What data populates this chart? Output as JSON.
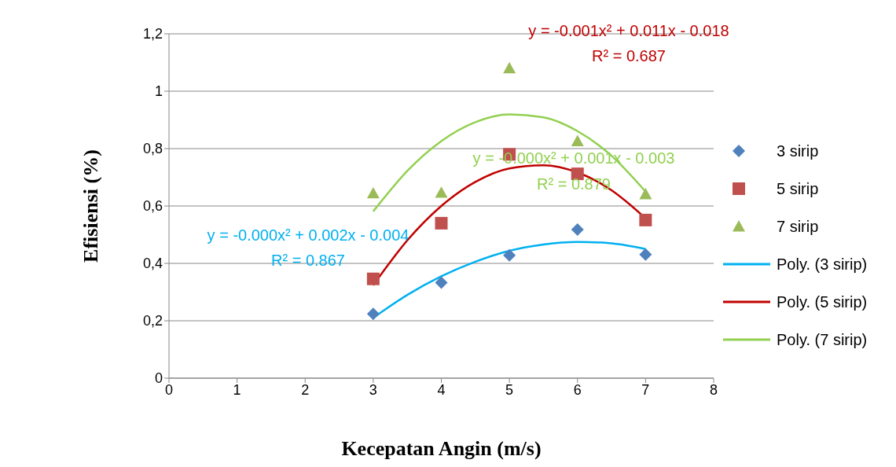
{
  "chart_data": {
    "type": "scatter",
    "xlabel": "Kecepatan Angin (m/s)",
    "ylabel": "Efisiensi (%)",
    "xlim": [
      0,
      8
    ],
    "xticks": [
      0,
      1,
      2,
      3,
      4,
      5,
      6,
      7,
      8
    ],
    "ylim": [
      0,
      1.2
    ],
    "yticks": [
      0,
      {
        "value": 0.2,
        "label": "0,2"
      },
      {
        "value": 0.4,
        "label": "0,4"
      },
      {
        "value": 0.6,
        "label": "0,6"
      },
      {
        "value": 0.8,
        "label": "0,8"
      },
      1,
      {
        "value": 1.2,
        "label": "1,2"
      }
    ],
    "grid": "y",
    "legend": "right",
    "series": [
      {
        "name": "3 sirip",
        "marker": "diamond",
        "color": "#4f81bd",
        "x": [
          3,
          4,
          5,
          6,
          7
        ],
        "values": [
          0.224,
          0.333,
          0.428,
          0.518,
          0.431
        ]
      },
      {
        "name": "5 sirip",
        "marker": "square",
        "color": "#c0504d",
        "x": [
          3,
          4,
          5,
          6,
          7
        ],
        "values": [
          0.346,
          0.54,
          0.78,
          0.712,
          0.551
        ]
      },
      {
        "name": "7 sirip",
        "marker": "triangle",
        "color": "#9bbb59",
        "x": [
          3,
          4,
          5,
          6,
          7
        ],
        "values": [
          0.644,
          0.646,
          1.08,
          0.826,
          0.641
        ]
      },
      {
        "name": "Poly. (3 sirip)",
        "type": "line",
        "color": "#00b0f0",
        "x": [
          3,
          3.5,
          4,
          4.5,
          5,
          5.5,
          6,
          6.5,
          7
        ],
        "values": [
          0.21,
          0.29,
          0.355,
          0.406,
          0.444,
          0.466,
          0.475,
          0.47,
          0.45
        ]
      },
      {
        "name": "Poly. (5 sirip)",
        "type": "line",
        "color": "#c00000",
        "x": [
          3,
          3.5,
          4,
          4.5,
          5,
          5.5,
          6,
          6.5,
          7
        ],
        "values": [
          0.324,
          0.48,
          0.6,
          0.684,
          0.731,
          0.742,
          0.717,
          0.655,
          0.557
        ]
      },
      {
        "name": "Poly. (7 sirip)",
        "type": "line",
        "color": "#92d050",
        "x": [
          3,
          3.5,
          4,
          4.5,
          5,
          5.5,
          6,
          6.5,
          7
        ],
        "values": [
          0.581,
          0.722,
          0.826,
          0.892,
          0.919,
          0.909,
          0.861,
          0.775,
          0.65
        ]
      }
    ],
    "annotations": [
      "y = -0.000x² + 0.002x - 0.004",
      "R² = 0.867",
      "y = -0.001x² + 0.011x - 0.018",
      "R² = 0.687",
      "y = -0.000x² + 0.001x - 0.003",
      "R² = 0.879"
    ]
  }
}
